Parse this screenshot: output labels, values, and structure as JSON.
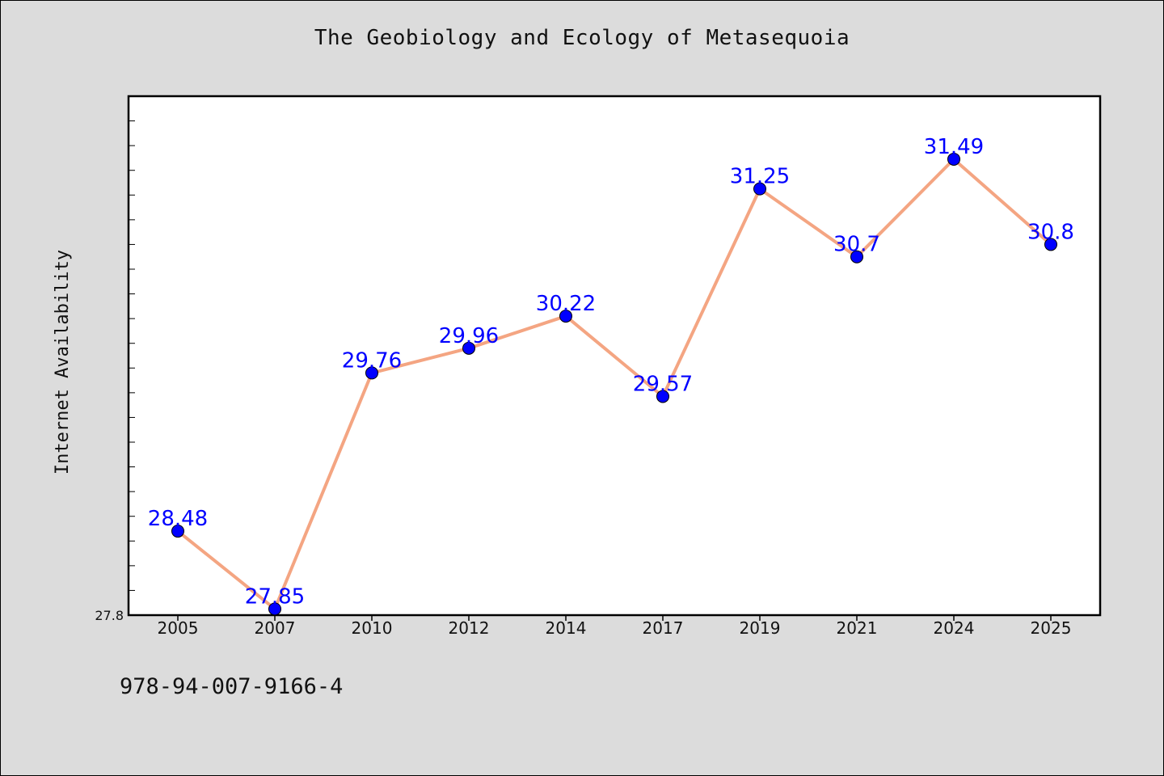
{
  "chart_data": {
    "type": "line",
    "title": "The Geobiology and Ecology of Metasequoia",
    "xlabel": "",
    "ylabel": "Internet Availability",
    "categories": [
      "2005",
      "2007",
      "2010",
      "2012",
      "2014",
      "2017",
      "2019",
      "2021",
      "2024",
      "2025"
    ],
    "series": [
      {
        "values": [
          28.48,
          27.85,
          29.76,
          29.96,
          30.22,
          29.57,
          31.25,
          30.7,
          31.49,
          30.8
        ],
        "data_labels": [
          "28.48",
          "27.85",
          "29.76",
          "29.96",
          "30.22",
          "29.57",
          "31.25",
          "30.7",
          "31.49",
          "30.8"
        ]
      }
    ],
    "ylim": [
      27.8,
      32.0
    ],
    "yticks_labeled": [
      "27.8"
    ],
    "grid": false,
    "line_color": "#f4a582",
    "marker_color": "#0000ff",
    "label_color": "#0000ff"
  },
  "footer": {
    "isbn": "978-94-007-9166-4"
  }
}
